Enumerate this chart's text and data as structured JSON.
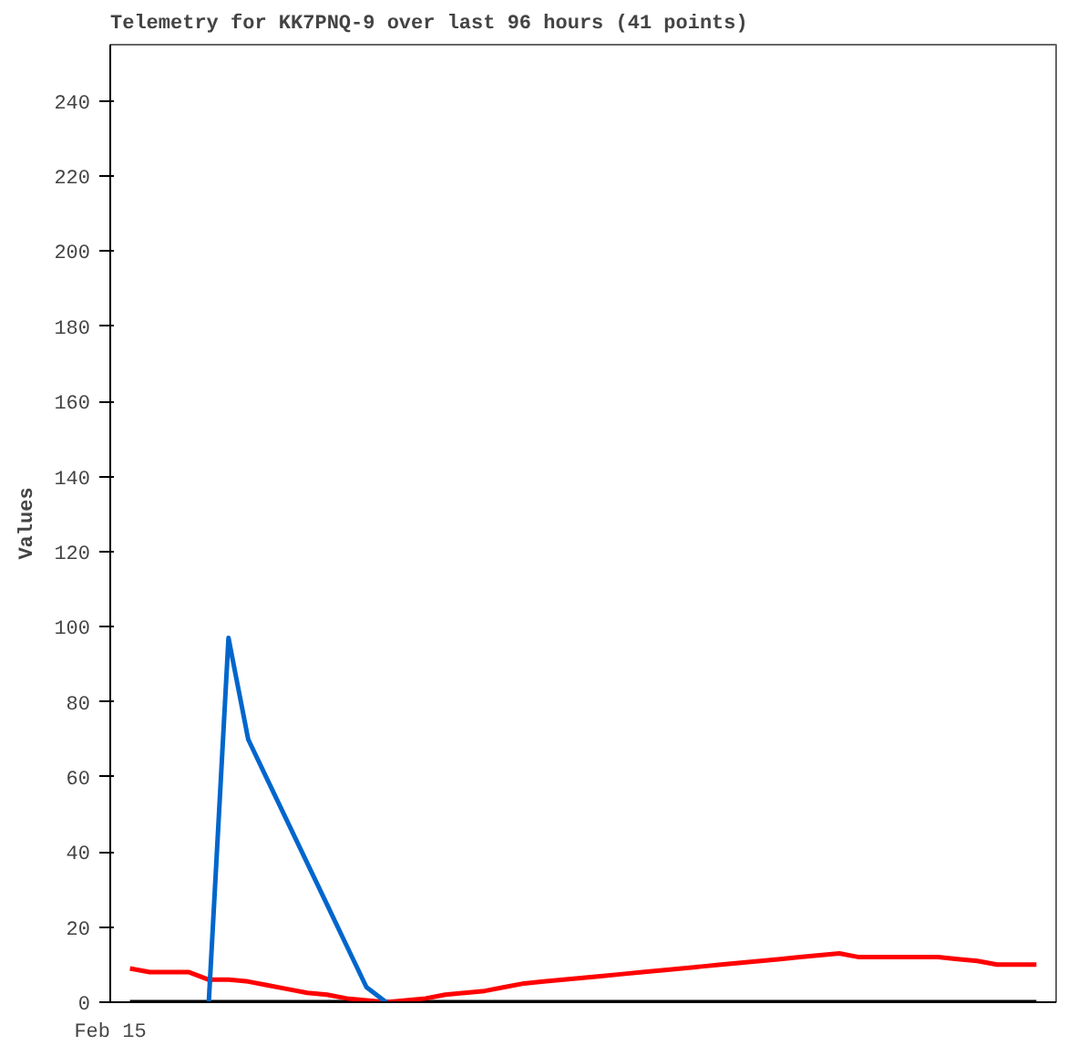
{
  "chart_data": {
    "type": "line",
    "title": "Telemetry for KK7PNQ-9 over last 96 hours (41 points)",
    "ylabel": "Values",
    "categories": [
      "Feb 15",
      null,
      null,
      null,
      null,
      null,
      null,
      null,
      null,
      null,
      null,
      null,
      null,
      null,
      null,
      null,
      null,
      null,
      null,
      null,
      null,
      null,
      null,
      null,
      null,
      null,
      null,
      null,
      null,
      null,
      null,
      null,
      null,
      null,
      null,
      null,
      null,
      null,
      null,
      null,
      null,
      null,
      null,
      null,
      null,
      null,
      null,
      null,
      null
    ],
    "ylim": [
      0,
      255
    ],
    "yticks": [
      0,
      20,
      40,
      60,
      80,
      100,
      120,
      140,
      160,
      180,
      200,
      220,
      240
    ],
    "grid": false,
    "series": [
      {
        "color": "#000000",
        "values": [
          null,
          0,
          0,
          0,
          0,
          0,
          0,
          0,
          0,
          0,
          0,
          0,
          0,
          0,
          0,
          0,
          0,
          0,
          0,
          0,
          0,
          0,
          0,
          0,
          0,
          0,
          0,
          0,
          0,
          0,
          0,
          0,
          0,
          0,
          0,
          0,
          0,
          0,
          0,
          0,
          0,
          0,
          0,
          0,
          0,
          0,
          0,
          0,
          null
        ]
      },
      {
        "color": "#ff0000",
        "values": [
          null,
          9,
          8,
          8,
          8,
          6,
          6,
          5.5,
          4.5,
          3.5,
          2.5,
          2,
          1,
          0.5,
          0,
          0.5,
          1,
          2,
          2.5,
          3,
          4,
          5,
          5.5,
          6,
          6.5,
          7,
          7.5,
          8,
          8.5,
          9,
          9.5,
          10,
          10.5,
          11,
          11.5,
          12,
          12.5,
          13,
          12,
          12,
          12,
          12,
          12,
          11.5,
          11,
          10,
          10,
          10,
          null
        ]
      },
      {
        "color": "#0066cc",
        "values": [
          null,
          null,
          null,
          null,
          null,
          0,
          97,
          70,
          59,
          48,
          37,
          26,
          15,
          4,
          0,
          null,
          null,
          null,
          null,
          null,
          null,
          null,
          null,
          null,
          null,
          null,
          null,
          null,
          null,
          null,
          null,
          null,
          null,
          null,
          null,
          null,
          null,
          null,
          null,
          null,
          null,
          null,
          null,
          null,
          null,
          null,
          null,
          null,
          null
        ]
      }
    ]
  }
}
